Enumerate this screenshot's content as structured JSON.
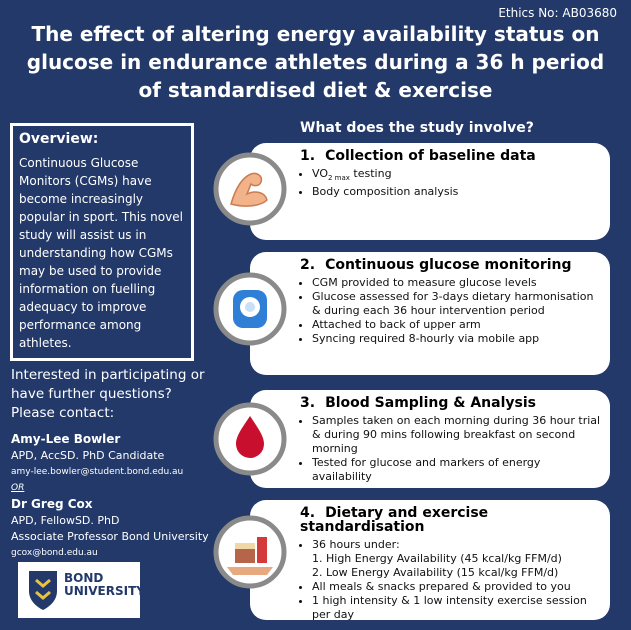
{
  "ethics": "Ethics No:  AB03680",
  "title": "The effect of altering energy availability status on glucose in endurance athletes during a 36 h period of standardised diet & exercise",
  "overview": {
    "heading": "Overview:",
    "text": "Continuous Glucose Monitors (CGMs)  have become increasingly popular in sport. This novel study will assist us in understanding how CGMs may be used to provide information on fuelling adequacy to improve performance among athletes."
  },
  "contact": {
    "prompt": "Interested in participating or have further questions? Please contact:",
    "people": [
      {
        "name": "Amy-Lee Bowler",
        "lines": [
          "APD, AccSD. PhD Candidate"
        ],
        "email": "amy-lee.bowler@student.bond.edu.au"
      },
      {
        "name": "Dr Greg Cox",
        "lines": [
          "APD, FellowSD. PhD",
          "Associate Professor Bond University"
        ],
        "email": "gcox@bond.edu.au"
      }
    ],
    "or": "OR"
  },
  "logo": {
    "line1": "BOND",
    "line2": "UNIVERSITY"
  },
  "study": {
    "heading": "What does the study involve?",
    "steps": [
      {
        "number": "1.",
        "title": "Collection of baseline data",
        "vo2": [
          "VO",
          "2 max",
          " testing"
        ],
        "items": [
          "Body composition analysis"
        ]
      },
      {
        "number": "2.",
        "title": "Continuous glucose monitoring",
        "items": [
          "CGM provided to measure glucose levels",
          "Glucose assessed for 3-days dietary harmonisation & during each 36 hour intervention period",
          "Attached to back of upper arm",
          "Syncing required 8-hourly via mobile app"
        ]
      },
      {
        "number": "3.",
        "title": "Blood Sampling & Analysis",
        "items": [
          "Samples taken on each morning during 36 hour trial & during 90 mins following breakfast on second morning",
          "Tested for glucose and markers of energy availability"
        ]
      },
      {
        "number": "4.",
        "title": "Dietary and exercise standardisation",
        "lead": "36 hours under:",
        "sub": [
          "High Energy Availability (45 kcal/kg FFM/d)",
          "Low Energy Availability (15 kcal/kg FFM/d)"
        ],
        "items": [
          "All meals & snacks prepared & provided to you",
          "1 high intensity & 1 low intensity exercise session per day"
        ]
      }
    ]
  }
}
